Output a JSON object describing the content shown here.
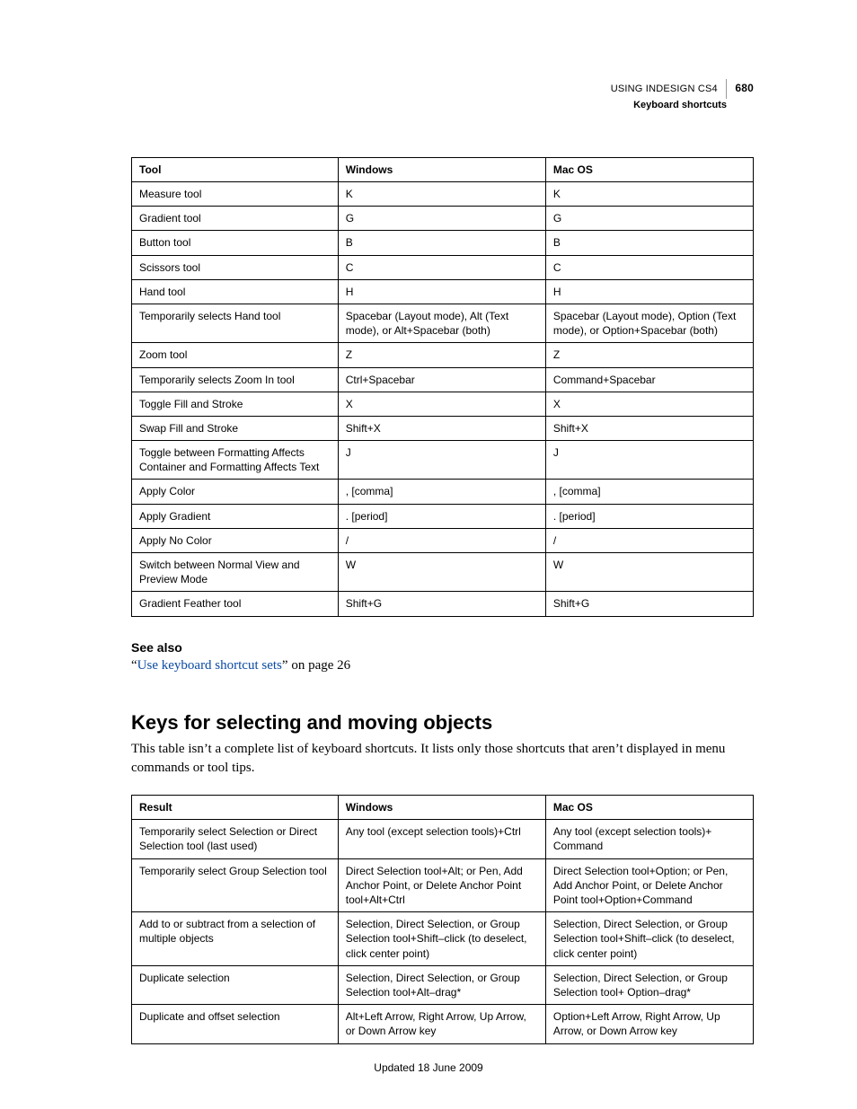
{
  "header": {
    "doc_title": "USING INDESIGN CS4",
    "page_number": "680",
    "section": "Keyboard shortcuts"
  },
  "table1": {
    "columns": [
      "Tool",
      "Windows",
      "Mac OS"
    ],
    "rows": [
      [
        "Measure tool",
        "K",
        "K"
      ],
      [
        "Gradient tool",
        "G",
        "G"
      ],
      [
        "Button tool",
        "B",
        "B"
      ],
      [
        "Scissors tool",
        "C",
        "C"
      ],
      [
        "Hand tool",
        "H",
        "H"
      ],
      [
        "Temporarily selects Hand tool",
        "Spacebar (Layout mode), Alt (Text mode), or Alt+Spacebar (both)",
        "Spacebar (Layout mode), Option (Text mode), or Option+Spacebar (both)"
      ],
      [
        "Zoom tool",
        "Z",
        "Z"
      ],
      [
        "Temporarily selects Zoom In tool",
        "Ctrl+Spacebar",
        "Command+Spacebar"
      ],
      [
        "Toggle Fill and Stroke",
        "X",
        "X"
      ],
      [
        "Swap Fill and Stroke",
        "Shift+X",
        "Shift+X"
      ],
      [
        "Toggle between Formatting Affects Container and Formatting Affects Text",
        "J",
        "J"
      ],
      [
        "Apply Color",
        ", [comma]",
        ", [comma]"
      ],
      [
        "Apply Gradient",
        ". [period]",
        ". [period]"
      ],
      [
        "Apply No Color",
        "/",
        "/"
      ],
      [
        "Switch between Normal View and Preview Mode",
        "W",
        "W"
      ],
      [
        "Gradient Feather tool",
        "Shift+G",
        "Shift+G"
      ]
    ]
  },
  "see_also": {
    "label": "See also",
    "open_quote": "“",
    "close_quote": "”",
    "link_text": "Use keyboard shortcut sets",
    "suffix": " on page 26"
  },
  "section2": {
    "heading": "Keys for selecting and moving objects",
    "intro": "This table isn’t a complete list of keyboard shortcuts. It lists only those shortcuts that aren’t displayed in menu commands or tool tips."
  },
  "table2": {
    "columns": [
      "Result",
      "Windows",
      "Mac OS"
    ],
    "rows": [
      [
        "Temporarily select Selection or Direct Selection tool (last used)",
        "Any tool (except selection tools)+Ctrl",
        "Any tool (except selection tools)+ Command"
      ],
      [
        "Temporarily select Group Selection tool",
        "Direct Selection tool+Alt; or Pen, Add Anchor Point, or Delete Anchor Point tool+Alt+Ctrl",
        "Direct Selection tool+Option; or Pen, Add Anchor Point, or Delete Anchor Point tool+Option+Command"
      ],
      [
        "Add to or subtract from a selection of multiple objects",
        "Selection, Direct Selection, or Group Selection tool+Shift–click (to deselect, click center point)",
        "Selection, Direct Selection, or Group Selection tool+Shift–click (to deselect, click center point)"
      ],
      [
        "Duplicate selection",
        "Selection, Direct Selection, or Group Selection tool+Alt–drag*",
        "Selection, Direct Selection, or Group Selection tool+ Option–drag*"
      ],
      [
        "Duplicate and offset selection",
        "Alt+Left Arrow, Right Arrow, Up Arrow, or Down Arrow key",
        "Option+Left Arrow, Right Arrow, Up Arrow, or Down Arrow key"
      ]
    ]
  },
  "footer": {
    "text": "Updated 18 June 2009"
  }
}
